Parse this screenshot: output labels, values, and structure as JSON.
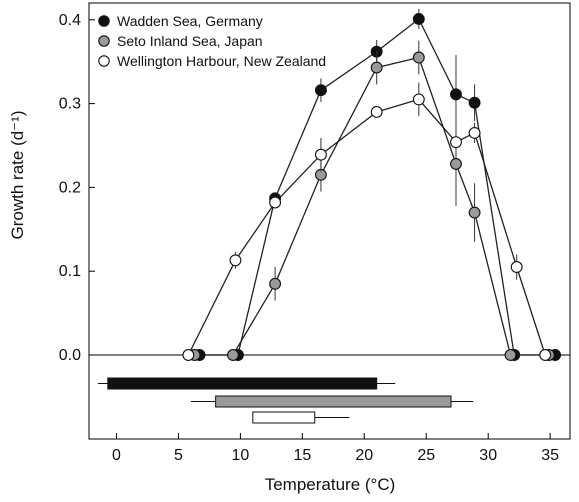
{
  "chart_data": {
    "type": "line",
    "xlabel": "Temperature (°C)",
    "ylabel": "Growth rate (d⁻¹)",
    "xlim": [
      -2.5,
      37
    ],
    "ylim": [
      -0.05,
      0.44
    ],
    "x_ticks": [
      0,
      5,
      10,
      15,
      20,
      25,
      30,
      35
    ],
    "x_tick_labels": [
      "0",
      "5",
      "10",
      "15",
      "20",
      "25",
      "30",
      "35"
    ],
    "y_ticks": [
      0.0,
      0.1,
      0.2,
      0.3,
      0.4
    ],
    "y_tick_labels": [
      "0.0",
      "0.1",
      "0.2",
      "0.3",
      "0.4"
    ],
    "legend_position": "top-left",
    "zero_line": true,
    "series": [
      {
        "name": "Wadden Sea, Germany",
        "marker": "filled-black",
        "fill": "#111111",
        "points": [
          {
            "x": 6.7,
            "y": 0.0,
            "err": 0
          },
          {
            "x": 9.8,
            "y": 0.0,
            "err": 0
          },
          {
            "x": 12.8,
            "y": 0.187,
            "err": 0
          },
          {
            "x": 16.5,
            "y": 0.316,
            "err": 0.014
          },
          {
            "x": 21.0,
            "y": 0.362,
            "err": 0.014
          },
          {
            "x": 24.4,
            "y": 0.401,
            "err": 0.012
          },
          {
            "x": 27.4,
            "y": 0.311,
            "err": 0.047
          },
          {
            "x": 28.9,
            "y": 0.301,
            "err": 0.022
          },
          {
            "x": 32.1,
            "y": 0.0,
            "err": 0
          },
          {
            "x": 35.4,
            "y": 0.0,
            "err": 0
          }
        ]
      },
      {
        "name": "Seto Inland Sea, Japan",
        "marker": "filled-grey",
        "fill": "#9a9a9a",
        "points": [
          {
            "x": 6.3,
            "y": 0.0,
            "err": 0
          },
          {
            "x": 9.4,
            "y": 0.0,
            "err": 0
          },
          {
            "x": 12.8,
            "y": 0.085,
            "err": 0.02
          },
          {
            "x": 16.5,
            "y": 0.215,
            "err": 0.02
          },
          {
            "x": 21.0,
            "y": 0.343,
            "err": 0.02
          },
          {
            "x": 24.4,
            "y": 0.355,
            "err": 0.02
          },
          {
            "x": 27.4,
            "y": 0.228,
            "err": 0.05
          },
          {
            "x": 28.9,
            "y": 0.17,
            "err": 0.035
          },
          {
            "x": 31.8,
            "y": 0.0,
            "err": 0
          },
          {
            "x": 34.9,
            "y": 0.0,
            "err": 0
          }
        ]
      },
      {
        "name": "Wellington Harbour, New Zealand",
        "marker": "open",
        "fill": "#ffffff",
        "points": [
          {
            "x": 5.8,
            "y": 0.0,
            "err": 0
          },
          {
            "x": 9.6,
            "y": 0.113,
            "err": 0.01
          },
          {
            "x": 12.8,
            "y": 0.182,
            "err": 0
          },
          {
            "x": 16.5,
            "y": 0.239,
            "err": 0.02
          },
          {
            "x": 21.0,
            "y": 0.29,
            "err": 0
          },
          {
            "x": 24.4,
            "y": 0.305,
            "err": 0.02
          },
          {
            "x": 27.4,
            "y": 0.254,
            "err": 0.012
          },
          {
            "x": 28.9,
            "y": 0.265,
            "err": 0.012
          },
          {
            "x": 32.3,
            "y": 0.105,
            "err": 0.015
          },
          {
            "x": 34.6,
            "y": 0.0,
            "err": 0
          }
        ]
      }
    ],
    "range_bars": [
      {
        "series": "Wadden Sea, Germany",
        "fill": "#111111",
        "start": -0.7,
        "end": 21.0,
        "whisker_left": -1.5,
        "whisker_right": 22.5
      },
      {
        "series": "Seto Inland Sea, Japan",
        "fill": "#9a9a9a",
        "start": 8.0,
        "end": 27.0,
        "whisker_left": 6.0,
        "whisker_right": 28.8
      },
      {
        "series": "Wellington Harbour, New Zealand",
        "fill": "#ffffff",
        "start": 11.0,
        "end": 16.0,
        "whisker_left": 11.0,
        "whisker_right": 18.8
      }
    ]
  }
}
